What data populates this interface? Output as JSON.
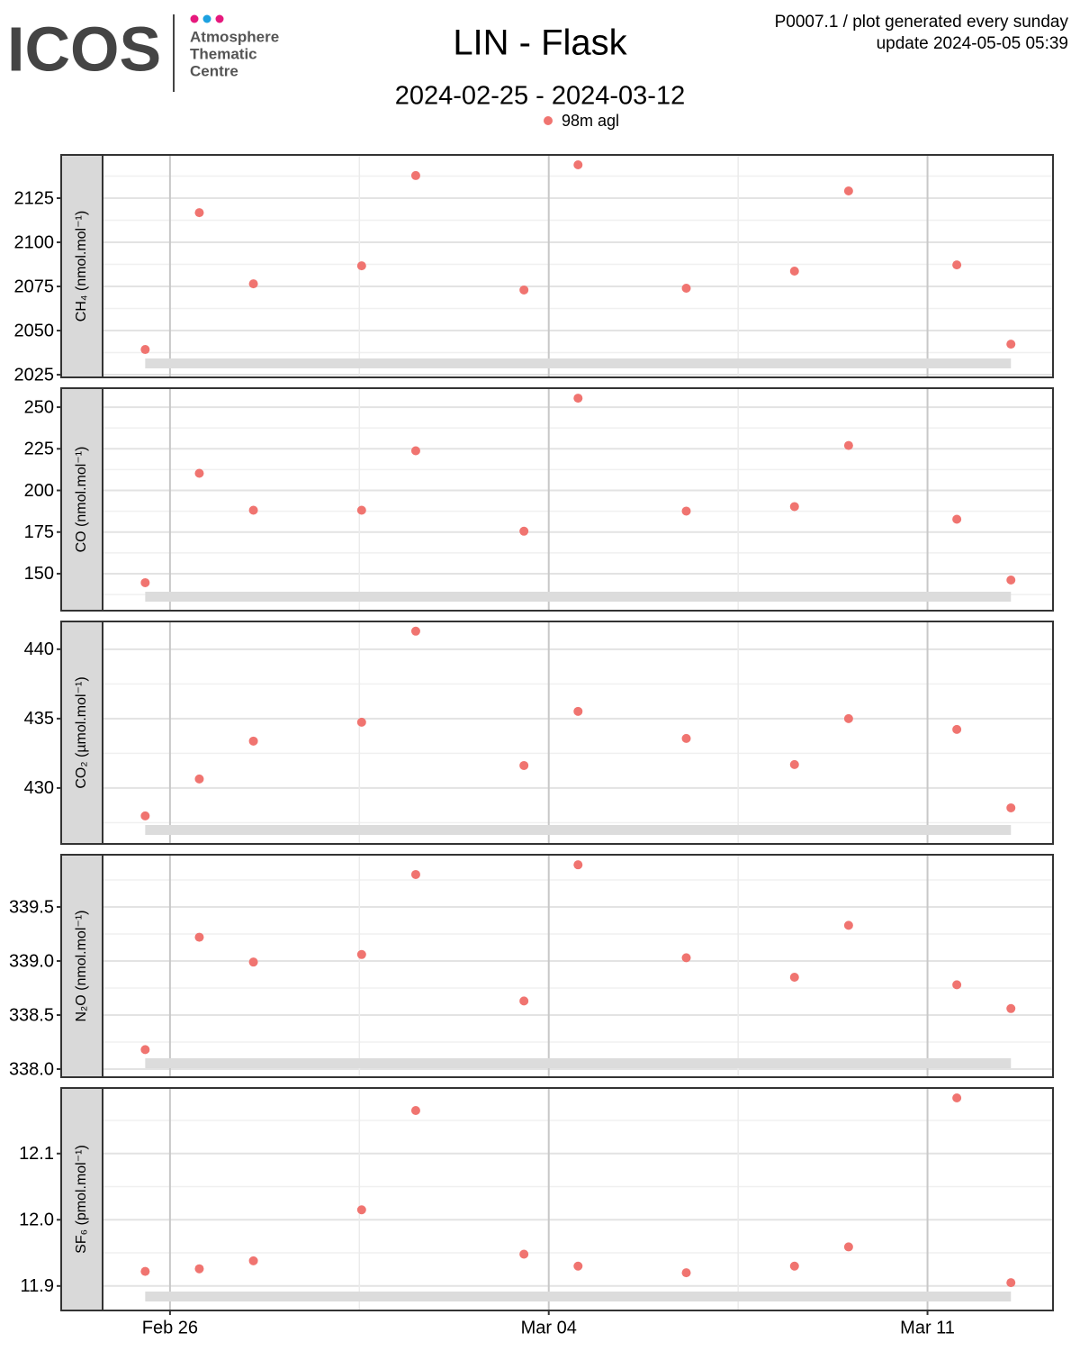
{
  "logo": {
    "name": "ICOS",
    "lines": [
      "Atmosphere",
      "Thematic",
      "Centre"
    ]
  },
  "title": "LIN - Flask",
  "subtitle": "2024-02-25 - 2024-03-12",
  "notes": [
    "P0007.1 / plot generated every sunday",
    "update  2024-05-05 05:39"
  ],
  "chart_data": [
    {
      "type": "scatter",
      "ylabel": "CH₄ (nmol.mol⁻¹)",
      "x": [
        "2024-02-25 13:00",
        "2024-02-26 13:00",
        "2024-02-27 13:00",
        "2024-02-29 13:00",
        "2024-03-01 13:00",
        "2024-03-03 13:00",
        "2024-03-04 13:00",
        "2024-03-06 13:00",
        "2024-03-08 13:00",
        "2024-03-09 13:00",
        "2024-03-11 13:00",
        "2024-03-12 13:00"
      ],
      "series": [
        {
          "name": "98m agl",
          "color": "#f07470",
          "values": [
            2039.3,
            2116.8,
            2076.5,
            2086.7,
            2137.8,
            2073.0,
            2143.9,
            2074.0,
            2083.7,
            2129.1,
            2087.2,
            2042.3
          ]
        }
      ],
      "xlim": [
        "2024-02-24 18:30",
        "2024-03-13 07:40"
      ],
      "xticks": [
        {
          "value": "2024-02-26",
          "label": "Feb 26"
        },
        {
          "value": "2024-03-04",
          "label": "Mar 04"
        },
        {
          "value": "2024-03-11",
          "label": "Mar 11"
        }
      ],
      "ylim": [
        2023.5,
        2149.5
      ],
      "yticks": [
        2025,
        2050,
        2075,
        2100,
        2125
      ],
      "grid": true
    },
    {
      "type": "scatter",
      "ylabel": "CO (nmol.mol⁻¹)",
      "x": [
        "2024-02-25 13:00",
        "2024-02-26 13:00",
        "2024-02-27 13:00",
        "2024-02-29 13:00",
        "2024-03-01 13:00",
        "2024-03-03 13:00",
        "2024-03-04 13:00",
        "2024-03-06 13:00",
        "2024-03-08 13:00",
        "2024-03-09 13:00",
        "2024-03-11 13:00",
        "2024-03-12 13:00"
      ],
      "series": [
        {
          "name": "98m agl",
          "color": "#f07470",
          "values": [
            144.6,
            210.3,
            188.1,
            188.1,
            223.8,
            175.5,
            255.4,
            187.6,
            190.3,
            227.0,
            182.7,
            146.2
          ]
        }
      ],
      "xlim": [
        "2024-02-24 18:30",
        "2024-03-13 07:40"
      ],
      "xticks": [
        {
          "value": "2024-02-26",
          "label": "Feb 26"
        },
        {
          "value": "2024-03-04",
          "label": "Mar 04"
        },
        {
          "value": "2024-03-11",
          "label": "Mar 11"
        }
      ],
      "ylim": [
        127.8,
        261.4
      ],
      "yticks": [
        150,
        175,
        200,
        225,
        250
      ],
      "grid": true
    },
    {
      "type": "scatter",
      "ylabel": "CO₂ (µmol.mol⁻¹)",
      "x": [
        "2024-02-25 13:00",
        "2024-02-26 13:00",
        "2024-02-27 13:00",
        "2024-02-29 13:00",
        "2024-03-01 13:00",
        "2024-03-03 13:00",
        "2024-03-04 13:00",
        "2024-03-06 13:00",
        "2024-03-08 13:00",
        "2024-03-09 13:00",
        "2024-03-11 13:00",
        "2024-03-12 13:00"
      ],
      "series": [
        {
          "name": "98m agl",
          "color": "#f07470",
          "values": [
            427.99,
            430.65,
            433.38,
            434.74,
            441.3,
            431.62,
            435.52,
            433.57,
            431.69,
            435.0,
            434.22,
            428.57
          ]
        }
      ],
      "xlim": [
        "2024-02-24 18:30",
        "2024-03-13 07:40"
      ],
      "xticks": [
        {
          "value": "2024-02-26",
          "label": "Feb 26"
        },
        {
          "value": "2024-03-04",
          "label": "Mar 04"
        },
        {
          "value": "2024-03-11",
          "label": "Mar 11"
        }
      ],
      "ylim": [
        425.97,
        442.0
      ],
      "yticks": [
        430,
        435,
        440
      ],
      "grid": true
    },
    {
      "type": "scatter",
      "ylabel": "N₂O (nmol.mol⁻¹)",
      "x": [
        "2024-02-25 13:00",
        "2024-02-26 13:00",
        "2024-02-27 13:00",
        "2024-02-29 13:00",
        "2024-03-01 13:00",
        "2024-03-03 13:00",
        "2024-03-04 13:00",
        "2024-03-06 13:00",
        "2024-03-08 13:00",
        "2024-03-09 13:00",
        "2024-03-11 13:00",
        "2024-03-12 13:00"
      ],
      "series": [
        {
          "name": "98m agl",
          "color": "#f07470",
          "values": [
            338.18,
            339.22,
            338.99,
            339.06,
            339.8,
            338.63,
            339.89,
            339.03,
            338.85,
            339.33,
            338.78,
            338.56
          ]
        }
      ],
      "xlim": [
        "2024-02-24 18:30",
        "2024-03-13 07:40"
      ],
      "xticks": [
        {
          "value": "2024-02-26",
          "label": "Feb 26"
        },
        {
          "value": "2024-03-04",
          "label": "Mar 04"
        },
        {
          "value": "2024-03-11",
          "label": "Mar 11"
        }
      ],
      "ylim": [
        337.925,
        339.983
      ],
      "yticks": [
        {
          "value": 338,
          "label": "338.0"
        },
        338.5,
        {
          "value": 339,
          "label": "339.0"
        },
        339.5
      ],
      "grid": true
    },
    {
      "type": "scatter",
      "ylabel": "SF₆ (pmol.mol⁻¹)",
      "x": [
        "2024-02-25 13:00",
        "2024-02-26 13:00",
        "2024-02-27 13:00",
        "2024-02-29 13:00",
        "2024-03-01 13:00",
        "2024-03-03 13:00",
        "2024-03-04 13:00",
        "2024-03-06 13:00",
        "2024-03-08 13:00",
        "2024-03-09 13:00",
        "2024-03-11 13:00",
        "2024-03-12 13:00"
      ],
      "series": [
        {
          "name": "98m agl",
          "color": "#f07470",
          "values": [
            11.922,
            11.926,
            11.938,
            12.015,
            12.165,
            11.948,
            11.93,
            11.92,
            11.93,
            11.959,
            12.184,
            11.905
          ]
        }
      ],
      "xlim": [
        "2024-02-24 18:30",
        "2024-03-13 07:40"
      ],
      "xticks": [
        {
          "value": "2024-02-26",
          "label": "Feb 26"
        },
        {
          "value": "2024-03-04",
          "label": "Mar 04"
        },
        {
          "value": "2024-03-11",
          "label": "Mar 11"
        }
      ],
      "ylim": [
        11.863,
        12.199
      ],
      "yticks": [
        11.9,
        {
          "value": 12,
          "label": "12.0"
        },
        12.1
      ],
      "grid": true
    }
  ]
}
